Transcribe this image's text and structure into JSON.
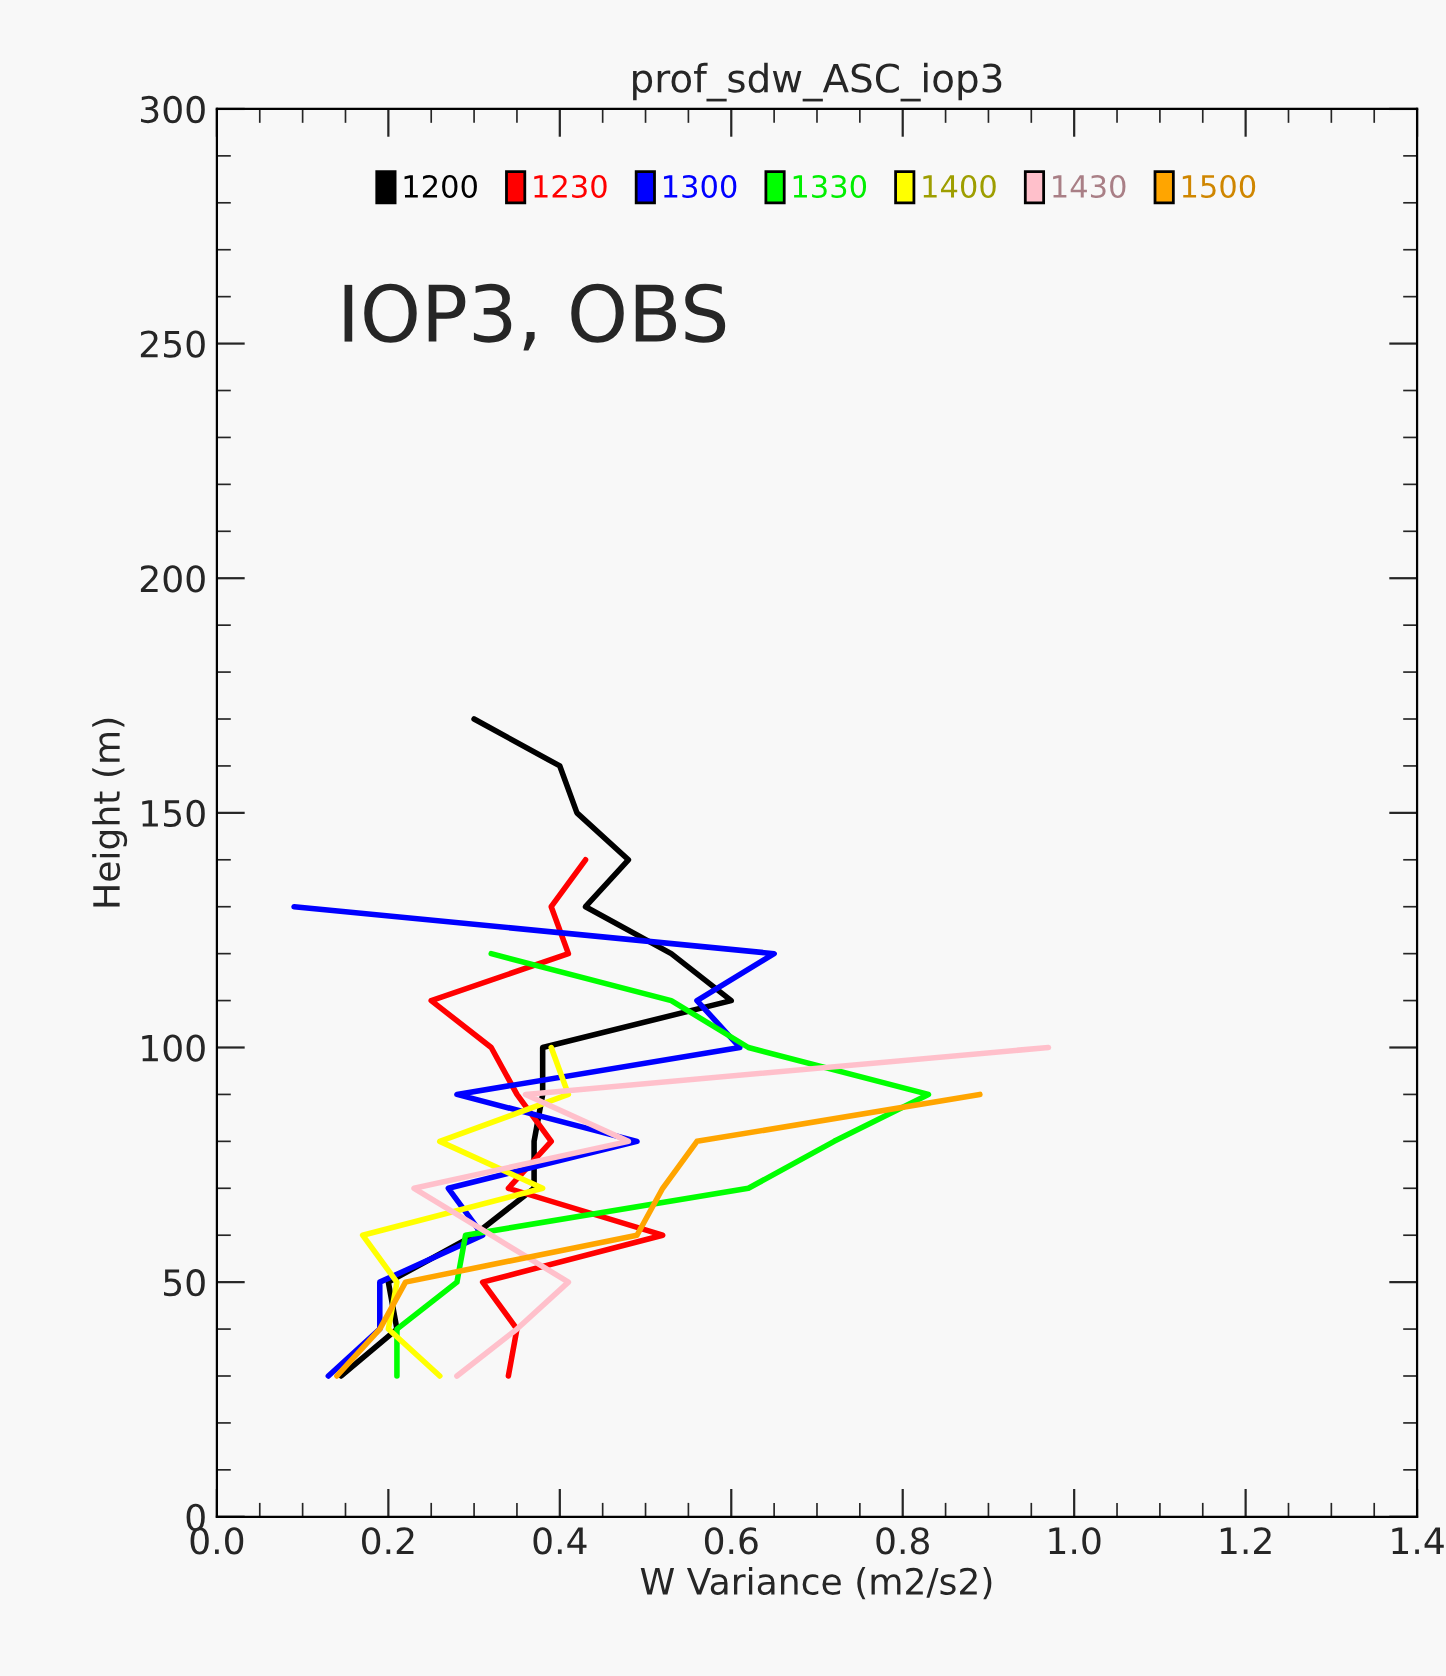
{
  "chart_data": {
    "type": "line",
    "title": "prof_sdw_ASC_iop3",
    "xlabel": "W Variance (m2/s2)",
    "ylabel": "Height (m)",
    "annotations": [
      "IOP3, OBS"
    ],
    "orientation": "horizontal",
    "x": [
      30,
      40,
      50,
      60,
      70,
      80,
      90,
      100,
      110,
      120,
      130,
      140,
      150,
      160,
      170
    ],
    "series": [
      {
        "name": "1200",
        "color": "#000000",
        "values": [
          0.145,
          0.21,
          0.2,
          0.3,
          0.37,
          0.37,
          0.38,
          0.38,
          0.6,
          0.53,
          0.43,
          0.48,
          0.42,
          0.4,
          0.3
        ]
      },
      {
        "name": "1230",
        "color": "#ff0000",
        "values": [
          0.34,
          0.35,
          0.31,
          0.52,
          0.34,
          0.39,
          0.35,
          0.32,
          0.25,
          0.41,
          0.39,
          0.43,
          null,
          null,
          null
        ]
      },
      {
        "name": "1300",
        "color": "#0000ff",
        "values": [
          0.13,
          0.19,
          0.19,
          0.31,
          0.27,
          0.49,
          0.28,
          0.61,
          0.56,
          0.65,
          0.09,
          null,
          null,
          null,
          null
        ]
      },
      {
        "name": "1330",
        "color": "#00ff00",
        "values": [
          0.21,
          0.21,
          0.28,
          0.29,
          0.62,
          0.72,
          0.83,
          0.62,
          0.53,
          0.32,
          null,
          null,
          null,
          null,
          null
        ]
      },
      {
        "name": "1400",
        "color": "#ffff00",
        "values": [
          0.26,
          0.2,
          0.21,
          0.17,
          0.38,
          0.26,
          0.41,
          0.39,
          null,
          null,
          null,
          null,
          null,
          null,
          null
        ]
      },
      {
        "name": "1430",
        "color": "#ffc0cb",
        "values": [
          0.28,
          0.35,
          0.41,
          0.32,
          0.23,
          0.48,
          0.36,
          0.97,
          null,
          null,
          null,
          null,
          null,
          null,
          null
        ]
      },
      {
        "name": "1500",
        "color": "#ffa500",
        "values": [
          0.14,
          0.19,
          0.22,
          0.49,
          0.52,
          0.56,
          0.89,
          null,
          null,
          null,
          null,
          null,
          null,
          null,
          null
        ]
      }
    ],
    "xlim": [
      0.0,
      1.4
    ],
    "xticks": [
      {
        "value": 0.0,
        "label": "0.0"
      },
      0.2,
      0.4,
      0.6,
      0.8,
      {
        "value": 1.0,
        "label": "1.0"
      },
      1.2,
      1.4
    ],
    "ylim": [
      0,
      300
    ],
    "yticks": [
      0,
      50,
      100,
      150,
      200,
      250,
      300
    ],
    "legend": "top",
    "grid": false
  }
}
